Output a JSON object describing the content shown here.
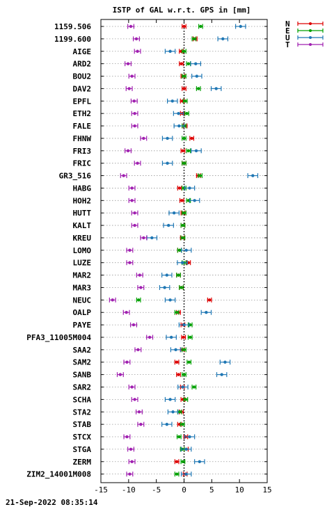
{
  "chart_data": {
    "type": "errorbar",
    "title": "ISTP of GAL w.r.t. GPS in [mm]",
    "xlim": [
      -15,
      15
    ],
    "xticks": [
      -15,
      -10,
      -5,
      0,
      5,
      10,
      15
    ],
    "grid": true,
    "legend_position": "top-right",
    "timestamp": "21-Sep-2022 08:35:14",
    "series": [
      {
        "name": "N",
        "color": "#dd0000"
      },
      {
        "name": "E",
        "color": "#00a000"
      },
      {
        "name": "U",
        "color": "#1f77b4"
      },
      {
        "name": "T",
        "color": "#a020b0"
      }
    ],
    "categories": [
      "1159.506",
      "1199.600",
      "AIGE",
      "ARD2",
      "BOU2",
      "DAV2",
      "EPFL",
      "ETH2",
      "FALE",
      "FHNW",
      "FRI3",
      "FRIC",
      "GR3_516",
      "HABG",
      "HOH2",
      "HUTT",
      "KALT",
      "KREU",
      "LOMO",
      "LUZE",
      "MAR2",
      "MAR3",
      "NEUC",
      "OALP",
      "PAYE",
      "PFA3_11005M004",
      "SAA2",
      "SAM2",
      "SANB",
      "SAR2",
      "SCHA",
      "STA2",
      "STAB",
      "STCX",
      "STGA",
      "ZERM",
      "ZIM2_14001M008"
    ],
    "values": {
      "N": [
        0.0,
        2.0,
        -0.5,
        -0.5,
        -0.2,
        0.0,
        -0.3,
        -0.3,
        0.2,
        1.4,
        -0.2,
        0.0,
        2.6,
        -0.8,
        -0.4,
        -0.2,
        -0.2,
        -0.3,
        -0.8,
        0.8,
        -1.0,
        -0.5,
        4.6,
        -1.0,
        -0.2,
        -0.1,
        -0.3,
        -1.3,
        -1.0,
        -0.3,
        -0.2,
        -0.5,
        -0.8,
        0.3,
        0.4,
        -1.3,
        0.2
      ],
      "E": [
        3.0,
        1.8,
        0.0,
        0.8,
        0.0,
        2.6,
        0.2,
        0.5,
        0.0,
        0.0,
        0.8,
        0.0,
        2.9,
        0.0,
        0.8,
        0.0,
        -0.2,
        -0.2,
        -0.8,
        0.0,
        -1.0,
        -0.5,
        -8.2,
        -1.3,
        1.1,
        1.1,
        0.0,
        0.9,
        0.0,
        1.8,
        0.3,
        -0.8,
        -0.3,
        -0.9,
        -0.3,
        -0.2,
        -1.3
      ],
      "U": [
        10.2,
        7.0,
        -2.5,
        2.1,
        2.3,
        5.8,
        -2.1,
        -1.0,
        -0.9,
        -3.0,
        2.2,
        -3.0,
        12.4,
        1.0,
        1.9,
        -1.8,
        -2.8,
        -5.8,
        0.4,
        -0.3,
        -3.1,
        -3.5,
        -2.5,
        4.0,
        0.0,
        -2.3,
        -1.5,
        7.4,
        6.8,
        -0.2,
        -2.5,
        -2.0,
        -3.1,
        1.0,
        0.4,
        2.8,
        0.4
      ],
      "T": [
        -9.6,
        -8.6,
        -8.4,
        -10.1,
        -9.4,
        -9.9,
        -9.0,
        -8.9,
        -8.9,
        -7.3,
        -10.1,
        -8.4,
        -10.9,
        -9.4,
        -9.4,
        -8.9,
        -8.9,
        -7.3,
        -9.8,
        -9.8,
        -8.0,
        -7.8,
        -12.9,
        -10.4,
        -9.1,
        -6.2,
        -8.3,
        -10.3,
        -11.5,
        -9.4,
        -8.9,
        -8.1,
        -7.8,
        -10.3,
        -9.6,
        -9.4,
        -9.8
      ]
    }
  }
}
